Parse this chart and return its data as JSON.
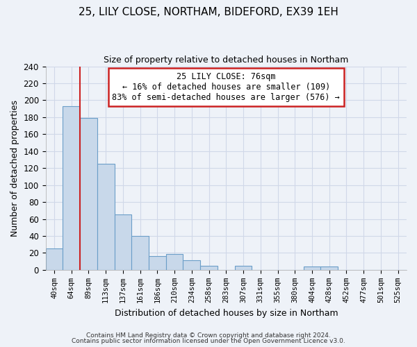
{
  "title": "25, LILY CLOSE, NORTHAM, BIDEFORD, EX39 1EH",
  "subtitle": "Size of property relative to detached houses in Northam",
  "xlabel": "Distribution of detached houses by size in Northam",
  "ylabel": "Number of detached properties",
  "bar_labels": [
    "40sqm",
    "64sqm",
    "89sqm",
    "113sqm",
    "137sqm",
    "161sqm",
    "186sqm",
    "210sqm",
    "234sqm",
    "258sqm",
    "283sqm",
    "307sqm",
    "331sqm",
    "355sqm",
    "380sqm",
    "404sqm",
    "428sqm",
    "452sqm",
    "477sqm",
    "501sqm",
    "525sqm"
  ],
  "bar_values": [
    25,
    193,
    179,
    125,
    65,
    40,
    16,
    19,
    11,
    5,
    0,
    5,
    0,
    0,
    0,
    4,
    4,
    0,
    0,
    0,
    0
  ],
  "bar_color": "#c8d8ea",
  "bar_edge_color": "#6b9ec8",
  "background_color": "#eef2f8",
  "plot_bg_color": "#eef2f8",
  "grid_color": "#d0d8e8",
  "redline_x": 1.5,
  "annotation_text": "25 LILY CLOSE: 76sqm\n← 16% of detached houses are smaller (109)\n83% of semi-detached houses are larger (576) →",
  "annotation_box_color": "#ffffff",
  "annotation_box_edge": "#cc2222",
  "footer_line1": "Contains HM Land Registry data © Crown copyright and database right 2024.",
  "footer_line2": "Contains public sector information licensed under the Open Government Licence v3.0.",
  "ylim": [
    0,
    240
  ],
  "yticks": [
    0,
    20,
    40,
    60,
    80,
    100,
    120,
    140,
    160,
    180,
    200,
    220,
    240
  ]
}
